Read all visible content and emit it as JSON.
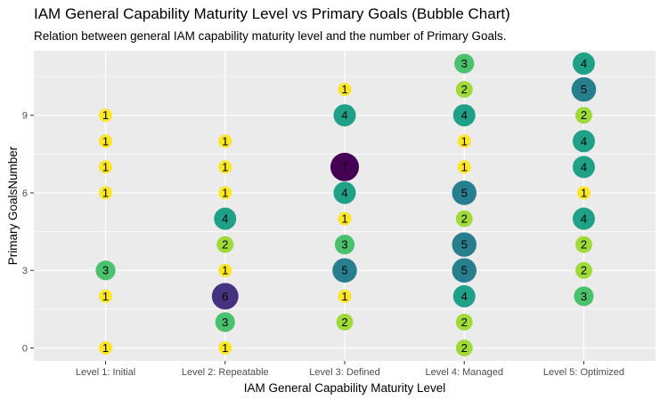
{
  "chart_data": {
    "type": "scatter",
    "title": "IAM General Capability Maturity Level vs Primary Goals (Bubble Chart)",
    "subtitle": "Relation between general IAM capability maturity level and the number of Primary Goals.",
    "xlabel": "IAM General Capability Maturity Level",
    "ylabel": "Primary GoalsNumber",
    "categories": [
      "Level 1: Initial",
      "Level 2: Repeatable",
      "Level 3: Defined",
      "Level 4: Managed",
      "Level 5: Optimized"
    ],
    "y_ticks": [
      "0",
      "3",
      "6",
      "9"
    ],
    "ylim": [
      -0.5,
      11.5
    ],
    "grid": true,
    "legend": "none",
    "size_range": [
      1,
      7
    ],
    "points": [
      {
        "x": "Level 1: Initial",
        "y": 9,
        "count": "1"
      },
      {
        "x": "Level 1: Initial",
        "y": 8,
        "count": "1"
      },
      {
        "x": "Level 1: Initial",
        "y": 7,
        "count": "1"
      },
      {
        "x": "Level 1: Initial",
        "y": 6,
        "count": "1"
      },
      {
        "x": "Level 1: Initial",
        "y": 3,
        "count": "3"
      },
      {
        "x": "Level 1: Initial",
        "y": 2,
        "count": "1"
      },
      {
        "x": "Level 1: Initial",
        "y": 0,
        "count": "1"
      },
      {
        "x": "Level 2: Repeatable",
        "y": 8,
        "count": "1"
      },
      {
        "x": "Level 2: Repeatable",
        "y": 7,
        "count": "1"
      },
      {
        "x": "Level 2: Repeatable",
        "y": 6,
        "count": "1"
      },
      {
        "x": "Level 2: Repeatable",
        "y": 5,
        "count": "4"
      },
      {
        "x": "Level 2: Repeatable",
        "y": 4,
        "count": "2"
      },
      {
        "x": "Level 2: Repeatable",
        "y": 3,
        "count": "1"
      },
      {
        "x": "Level 2: Repeatable",
        "y": 2,
        "count": "6"
      },
      {
        "x": "Level 2: Repeatable",
        "y": 1,
        "count": "3"
      },
      {
        "x": "Level 2: Repeatable",
        "y": 0,
        "count": "1"
      },
      {
        "x": "Level 3: Defined",
        "y": 10,
        "count": "1"
      },
      {
        "x": "Level 3: Defined",
        "y": 9,
        "count": "4"
      },
      {
        "x": "Level 3: Defined",
        "y": 7,
        "count": "7"
      },
      {
        "x": "Level 3: Defined",
        "y": 6,
        "count": "4"
      },
      {
        "x": "Level 3: Defined",
        "y": 5,
        "count": "1"
      },
      {
        "x": "Level 3: Defined",
        "y": 4,
        "count": "3"
      },
      {
        "x": "Level 3: Defined",
        "y": 3,
        "count": "5"
      },
      {
        "x": "Level 3: Defined",
        "y": 2,
        "count": "1"
      },
      {
        "x": "Level 3: Defined",
        "y": 1,
        "count": "2"
      },
      {
        "x": "Level 4: Managed",
        "y": 11,
        "count": "3"
      },
      {
        "x": "Level 4: Managed",
        "y": 10,
        "count": "2"
      },
      {
        "x": "Level 4: Managed",
        "y": 9,
        "count": "4"
      },
      {
        "x": "Level 4: Managed",
        "y": 8,
        "count": "1"
      },
      {
        "x": "Level 4: Managed",
        "y": 7,
        "count": "1"
      },
      {
        "x": "Level 4: Managed",
        "y": 6,
        "count": "5"
      },
      {
        "x": "Level 4: Managed",
        "y": 5,
        "count": "2"
      },
      {
        "x": "Level 4: Managed",
        "y": 4,
        "count": "5"
      },
      {
        "x": "Level 4: Managed",
        "y": 3,
        "count": "5"
      },
      {
        "x": "Level 4: Managed",
        "y": 2,
        "count": "4"
      },
      {
        "x": "Level 4: Managed",
        "y": 1,
        "count": "2"
      },
      {
        "x": "Level 4: Managed",
        "y": 0,
        "count": "2"
      },
      {
        "x": "Level 5: Optimized",
        "y": 11,
        "count": "4"
      },
      {
        "x": "Level 5: Optimized",
        "y": 10,
        "count": "5"
      },
      {
        "x": "Level 5: Optimized",
        "y": 9,
        "count": "2"
      },
      {
        "x": "Level 5: Optimized",
        "y": 8,
        "count": "4"
      },
      {
        "x": "Level 5: Optimized",
        "y": 7,
        "count": "4"
      },
      {
        "x": "Level 5: Optimized",
        "y": 6,
        "count": "1"
      },
      {
        "x": "Level 5: Optimized",
        "y": 5,
        "count": "4"
      },
      {
        "x": "Level 5: Optimized",
        "y": 4,
        "count": "2"
      },
      {
        "x": "Level 5: Optimized",
        "y": 3,
        "count": "2"
      },
      {
        "x": "Level 5: Optimized",
        "y": 2,
        "count": "3"
      }
    ],
    "colors": {
      "panel_bg": "#ebebeb",
      "grid": "#ffffff",
      "1": "#fde725",
      "2": "#a0da39",
      "3": "#4ac16d",
      "4": "#1fa187",
      "5": "#277f8e",
      "6": "#46327e",
      "7": "#440154"
    }
  }
}
